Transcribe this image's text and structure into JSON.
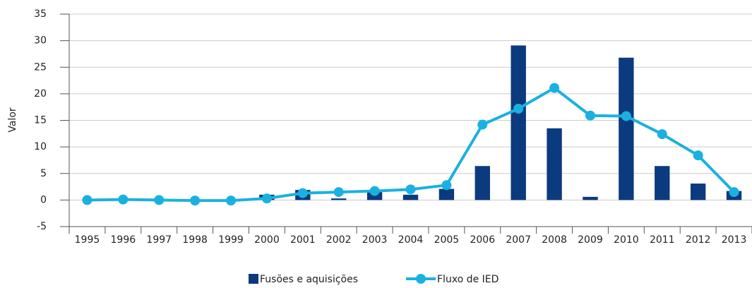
{
  "chart_data": {
    "type": "bar",
    "y_label": "Valor",
    "categories": [
      "1995",
      "1996",
      "1997",
      "1998",
      "1999",
      "2000",
      "2001",
      "2002",
      "2003",
      "2004",
      "2005",
      "2006",
      "2007",
      "2008",
      "2009",
      "2010",
      "2011",
      "2012",
      "2013"
    ],
    "series": [
      {
        "name": "Fusões e aquisições",
        "type": "bar",
        "color": "#0b3a7e",
        "values": [
          0,
          0,
          0,
          0,
          0,
          1.0,
          1.9,
          0.3,
          1.5,
          1.0,
          2.1,
          6.4,
          29.1,
          13.5,
          0.6,
          26.8,
          6.4,
          3.1,
          1.7
        ]
      },
      {
        "name": "Fluxo de IED",
        "type": "line",
        "color": "#1ab1e0",
        "values": [
          0,
          0.1,
          0,
          -0.1,
          -0.1,
          0.3,
          1.3,
          1.5,
          1.7,
          2.0,
          2.8,
          14.2,
          17.2,
          21.1,
          15.9,
          15.8,
          12.4,
          8.4,
          1.5
        ]
      }
    ],
    "ylim": [
      -5,
      35
    ],
    "yticks": [
      -5,
      0,
      5,
      10,
      15,
      20,
      25,
      30,
      35
    ],
    "grid": true
  }
}
